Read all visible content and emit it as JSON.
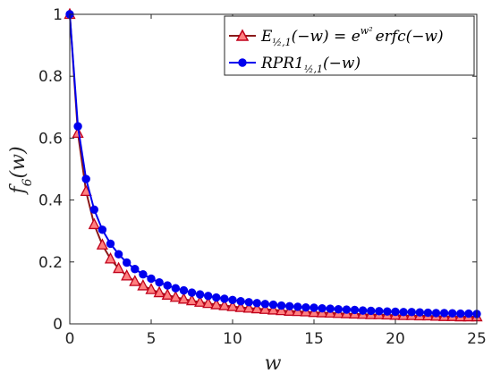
{
  "chart_data": {
    "type": "line",
    "title": "",
    "xlabel": "w",
    "ylabel": "f6(w)",
    "xlim": [
      0,
      25
    ],
    "ylim": [
      0,
      1
    ],
    "x_ticks": [
      "0",
      "5",
      "10",
      "15",
      "20",
      "25"
    ],
    "y_ticks": [
      "0",
      "0.2",
      "0.4",
      "0.6",
      "0.8",
      "1"
    ],
    "grid": false,
    "legend_position": "top-right",
    "x": [
      0,
      0.5,
      1,
      1.5,
      2,
      2.5,
      3,
      3.5,
      4,
      4.5,
      5,
      5.5,
      6,
      6.5,
      7,
      7.5,
      8,
      8.5,
      9,
      9.5,
      10,
      10.5,
      11,
      11.5,
      12,
      12.5,
      13,
      13.5,
      14,
      14.5,
      15,
      15.5,
      16,
      16.5,
      17,
      17.5,
      18,
      18.5,
      19,
      19.5,
      20,
      20.5,
      21,
      21.5,
      22,
      22.5,
      23,
      23.5,
      24,
      24.5,
      25
    ],
    "series": [
      {
        "name": "E_{1/2,1}(−w) = e^{w^2} erfc(−w)",
        "color": "#d7191c",
        "marker": "triangle",
        "values": [
          1,
          0.616,
          0.428,
          0.321,
          0.255,
          0.21,
          0.179,
          0.155,
          0.137,
          0.123,
          0.111,
          0.101,
          0.093,
          0.086,
          0.08,
          0.075,
          0.07,
          0.066,
          0.062,
          0.059,
          0.056,
          0.053,
          0.051,
          0.049,
          0.047,
          0.045,
          0.043,
          0.041,
          0.04,
          0.039,
          0.037,
          0.036,
          0.035,
          0.034,
          0.033,
          0.032,
          0.031,
          0.03,
          0.03,
          0.029,
          0.028,
          0.027,
          0.027,
          0.026,
          0.026,
          0.025,
          0.024,
          0.024,
          0.023,
          0.023,
          0.023
        ]
      },
      {
        "name": "RPR1_{1/2,1}(−w)",
        "color": "#0000ee",
        "marker": "circle",
        "values": [
          1,
          0.638,
          0.468,
          0.369,
          0.304,
          0.259,
          0.225,
          0.198,
          0.177,
          0.16,
          0.146,
          0.134,
          0.124,
          0.115,
          0.108,
          0.101,
          0.095,
          0.09,
          0.085,
          0.081,
          0.077,
          0.073,
          0.07,
          0.067,
          0.064,
          0.062,
          0.059,
          0.057,
          0.055,
          0.053,
          0.052,
          0.05,
          0.049,
          0.047,
          0.046,
          0.045,
          0.043,
          0.042,
          0.041,
          0.04,
          0.039,
          0.038,
          0.038,
          0.037,
          0.036,
          0.035,
          0.035,
          0.034,
          0.033,
          0.033,
          0.032
        ]
      }
    ],
    "legend": {
      "entry1": {
        "main": "E",
        "sub": "½,1",
        "rest": "(−w) = e",
        "sup": "w²",
        "tail": "erfc(−w)"
      },
      "entry2": {
        "main": "RPR1",
        "sub": "½,1",
        "rest": "(−w)"
      }
    }
  }
}
